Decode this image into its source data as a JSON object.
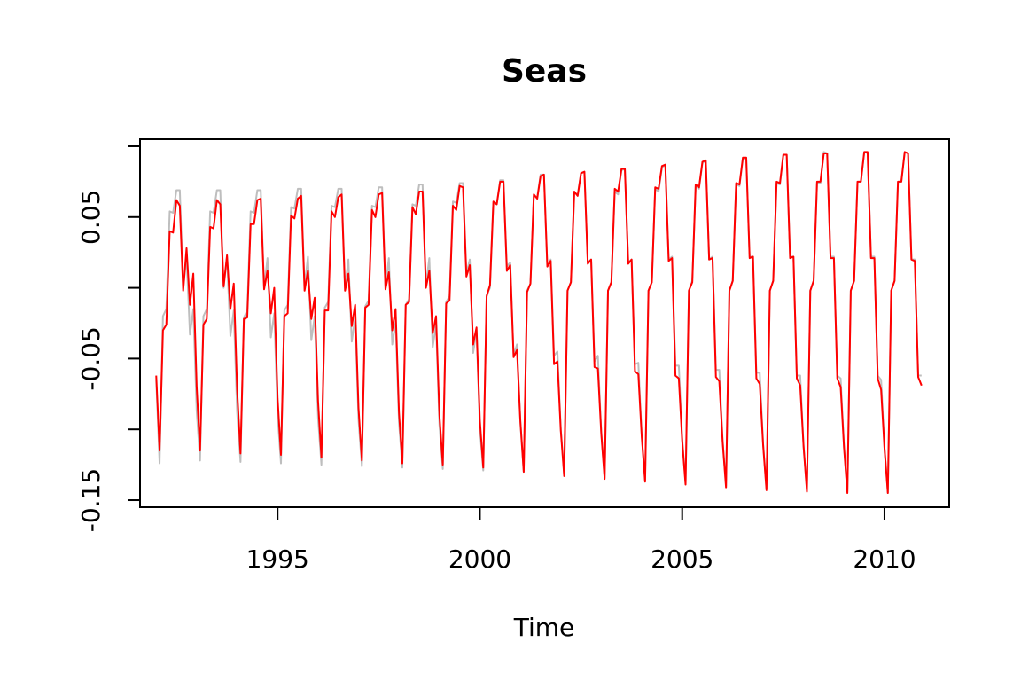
{
  "chart_data": {
    "type": "line",
    "title": "Seas",
    "xlabel": "Time",
    "ylabel": "",
    "xlim": [
      1991.6,
      2011.6
    ],
    "ylim": [
      -0.155,
      0.105
    ],
    "x_ticks": [
      1995,
      2000,
      2005,
      2010
    ],
    "x_tick_labels": [
      "1995",
      "2000",
      "2005",
      "2010"
    ],
    "y_ticks": [
      -0.15,
      -0.1,
      -0.05,
      0.0,
      0.05,
      0.1
    ],
    "y_tick_labels": [
      "-0.15",
      "",
      "-0.05",
      "",
      "0.05",
      ""
    ],
    "frequency": 12,
    "start": 1992.0,
    "end": 2010.917,
    "grid": false,
    "series_colors": [
      "#bebebe",
      "#ff0000"
    ],
    "series": [
      {
        "values": [
          -0.065,
          -0.124,
          -0.02,
          -0.015,
          0.054,
          0.053,
          0.069,
          0.069,
          0.0,
          0.022,
          -0.033,
          -0.015,
          -0.087,
          -0.122,
          -0.02,
          -0.015,
          0.054,
          0.053,
          0.069,
          0.069,
          0.0,
          0.022,
          -0.034,
          -0.016,
          -0.088,
          -0.123,
          -0.021,
          -0.016,
          0.054,
          0.053,
          0.069,
          0.069,
          0.0,
          0.021,
          -0.035,
          -0.018,
          -0.09,
          -0.124,
          -0.016,
          -0.012,
          0.057,
          0.056,
          0.07,
          0.07,
          0.001,
          0.022,
          -0.037,
          -0.02,
          -0.092,
          -0.125,
          -0.014,
          -0.01,
          0.058,
          0.057,
          0.07,
          0.07,
          0.0,
          0.02,
          -0.038,
          -0.021,
          -0.093,
          -0.126,
          -0.013,
          -0.009,
          0.058,
          0.057,
          0.071,
          0.071,
          0.001,
          0.021,
          -0.04,
          -0.024,
          -0.095,
          -0.127,
          -0.012,
          -0.008,
          0.059,
          0.058,
          0.073,
          0.073,
          0.002,
          0.021,
          -0.042,
          -0.026,
          -0.097,
          -0.128,
          -0.01,
          -0.006,
          0.061,
          0.06,
          0.074,
          0.074,
          0.01,
          0.02,
          -0.046,
          -0.03,
          -0.1,
          -0.129,
          -0.005,
          0.0,
          0.06,
          0.059,
          0.076,
          0.076,
          0.015,
          0.018,
          -0.048,
          -0.04,
          -0.095,
          -0.13,
          -0.002,
          0.003,
          0.065,
          0.064,
          0.08,
          0.08,
          0.015,
          0.02,
          -0.048,
          -0.045,
          -0.1,
          -0.132,
          -0.002,
          0.004,
          0.067,
          0.066,
          0.081,
          0.082,
          0.018,
          0.02,
          -0.052,
          -0.048,
          -0.102,
          -0.134,
          -0.002,
          0.004,
          0.068,
          0.066,
          0.083,
          0.084,
          0.018,
          0.02,
          -0.054,
          -0.053,
          -0.104,
          -0.136,
          -0.002,
          0.004,
          0.07,
          0.068,
          0.085,
          0.087,
          0.02,
          0.022,
          -0.055,
          -0.055,
          -0.106,
          -0.138,
          -0.002,
          0.005,
          0.072,
          0.07,
          0.088,
          0.09,
          0.02,
          0.022,
          -0.058,
          -0.058,
          -0.108,
          -0.14,
          -0.002,
          0.005,
          0.073,
          0.072,
          0.091,
          0.091,
          0.022,
          0.022,
          -0.06,
          -0.06,
          -0.11,
          -0.142,
          -0.002,
          0.005,
          0.074,
          0.073,
          0.094,
          0.094,
          0.022,
          0.022,
          -0.062,
          -0.062,
          -0.112,
          -0.143,
          -0.002,
          0.005,
          0.074,
          0.074,
          0.096,
          0.095,
          0.022,
          0.022,
          -0.062,
          -0.064,
          -0.112,
          -0.144,
          -0.002,
          0.005,
          0.075,
          0.075,
          0.096,
          0.095,
          0.022,
          0.022,
          -0.062,
          -0.065,
          -0.113,
          -0.145,
          -0.002,
          0.005,
          0.075,
          0.075,
          0.096,
          0.095,
          0.02,
          0.02,
          -0.062,
          -0.062
        ]
      },
      {
        "values": [
          -0.062,
          -0.115,
          -0.03,
          -0.026,
          0.04,
          0.039,
          0.062,
          0.058,
          -0.002,
          0.028,
          -0.012,
          0.01,
          -0.07,
          -0.115,
          -0.026,
          -0.022,
          0.043,
          0.042,
          0.062,
          0.059,
          0.001,
          0.023,
          -0.015,
          0.003,
          -0.072,
          -0.117,
          -0.022,
          -0.021,
          0.045,
          0.045,
          0.062,
          0.063,
          -0.001,
          0.012,
          -0.018,
          0.0,
          -0.078,
          -0.118,
          -0.02,
          -0.018,
          0.051,
          0.049,
          0.063,
          0.065,
          -0.002,
          0.012,
          -0.022,
          -0.007,
          -0.08,
          -0.12,
          -0.016,
          -0.016,
          0.054,
          0.05,
          0.064,
          0.066,
          -0.002,
          0.01,
          -0.027,
          -0.012,
          -0.085,
          -0.122,
          -0.014,
          -0.012,
          0.055,
          0.05,
          0.066,
          0.067,
          -0.001,
          0.011,
          -0.03,
          -0.015,
          -0.088,
          -0.124,
          -0.012,
          -0.01,
          0.057,
          0.052,
          0.068,
          0.068,
          0.0,
          0.012,
          -0.032,
          -0.02,
          -0.09,
          -0.125,
          -0.011,
          -0.009,
          0.058,
          0.055,
          0.072,
          0.071,
          0.008,
          0.016,
          -0.04,
          -0.028,
          -0.094,
          -0.127,
          -0.006,
          0.002,
          0.061,
          0.059,
          0.075,
          0.075,
          0.012,
          0.016,
          -0.049,
          -0.044,
          -0.094,
          -0.13,
          -0.003,
          0.003,
          0.066,
          0.063,
          0.079,
          0.08,
          0.015,
          0.019,
          -0.054,
          -0.052,
          -0.101,
          -0.133,
          -0.002,
          0.004,
          0.068,
          0.065,
          0.081,
          0.082,
          0.017,
          0.02,
          -0.056,
          -0.057,
          -0.103,
          -0.135,
          -0.002,
          0.004,
          0.07,
          0.068,
          0.084,
          0.084,
          0.017,
          0.02,
          -0.059,
          -0.061,
          -0.105,
          -0.137,
          -0.002,
          0.004,
          0.071,
          0.07,
          0.086,
          0.087,
          0.019,
          0.021,
          -0.062,
          -0.064,
          -0.108,
          -0.139,
          -0.002,
          0.004,
          0.073,
          0.071,
          0.089,
          0.09,
          0.02,
          0.021,
          -0.063,
          -0.066,
          -0.109,
          -0.141,
          -0.002,
          0.005,
          0.074,
          0.073,
          0.092,
          0.092,
          0.021,
          0.022,
          -0.064,
          -0.068,
          -0.111,
          -0.143,
          -0.002,
          0.005,
          0.075,
          0.074,
          0.094,
          0.094,
          0.021,
          0.022,
          -0.064,
          -0.069,
          -0.112,
          -0.144,
          -0.002,
          0.005,
          0.075,
          0.075,
          0.095,
          0.095,
          0.021,
          0.021,
          -0.064,
          -0.07,
          -0.113,
          -0.145,
          -0.002,
          0.005,
          0.075,
          0.075,
          0.096,
          0.096,
          0.021,
          0.021,
          -0.064,
          -0.072,
          -0.113,
          -0.145,
          -0.002,
          0.005,
          0.075,
          0.075,
          0.096,
          0.095,
          0.02,
          0.019,
          -0.063,
          -0.069
        ]
      }
    ]
  }
}
